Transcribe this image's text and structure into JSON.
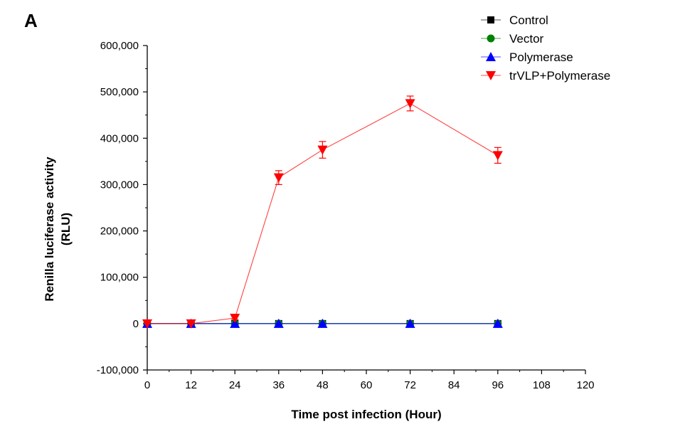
{
  "panel_label": "A",
  "chart_data": {
    "type": "line",
    "title": "",
    "xlabel": "Time post infection (Hour)",
    "ylabel_line1": "Renilla luciferase activity",
    "ylabel_line2": "(RLU)",
    "xlim": [
      0,
      120
    ],
    "ylim": [
      -100000,
      600000
    ],
    "x_ticks": [
      0,
      12,
      24,
      36,
      48,
      60,
      72,
      84,
      96,
      108,
      120
    ],
    "x_tick_labels": [
      "0",
      "12",
      "24",
      "36",
      "48",
      "60",
      "72",
      "84",
      "96",
      "108",
      "120"
    ],
    "y_ticks": [
      -100000,
      0,
      100000,
      200000,
      300000,
      400000,
      500000,
      600000
    ],
    "y_tick_labels": [
      "-100,000",
      "0",
      "100,000",
      "200,000",
      "300,000",
      "400,000",
      "500,000",
      "600,000"
    ],
    "x": [
      0,
      12,
      24,
      36,
      48,
      72,
      96
    ],
    "series": [
      {
        "name": "Control",
        "color": "#000000",
        "marker": "square",
        "values": [
          0,
          0,
          0,
          0,
          0,
          0,
          0
        ],
        "errors": [
          0,
          0,
          0,
          0,
          0,
          0,
          0
        ]
      },
      {
        "name": "Vector",
        "color": "#008000",
        "marker": "circle",
        "values": [
          0,
          0,
          0,
          0,
          0,
          0,
          0
        ],
        "errors": [
          0,
          0,
          0,
          0,
          0,
          0,
          0
        ]
      },
      {
        "name": "Polymerase",
        "color": "#0000ff",
        "marker": "triangle-up",
        "values": [
          0,
          0,
          0,
          0,
          0,
          0,
          0
        ],
        "errors": [
          0,
          0,
          0,
          0,
          0,
          0,
          0
        ]
      },
      {
        "name": "trVLP+Polymerase",
        "color": "#ff0000",
        "marker": "triangle-down",
        "values": [
          0,
          0,
          12000,
          315000,
          375000,
          475000,
          363000
        ],
        "errors": [
          0,
          0,
          3000,
          15000,
          18000,
          16000,
          17000
        ]
      }
    ],
    "legend_position": "top-right"
  }
}
